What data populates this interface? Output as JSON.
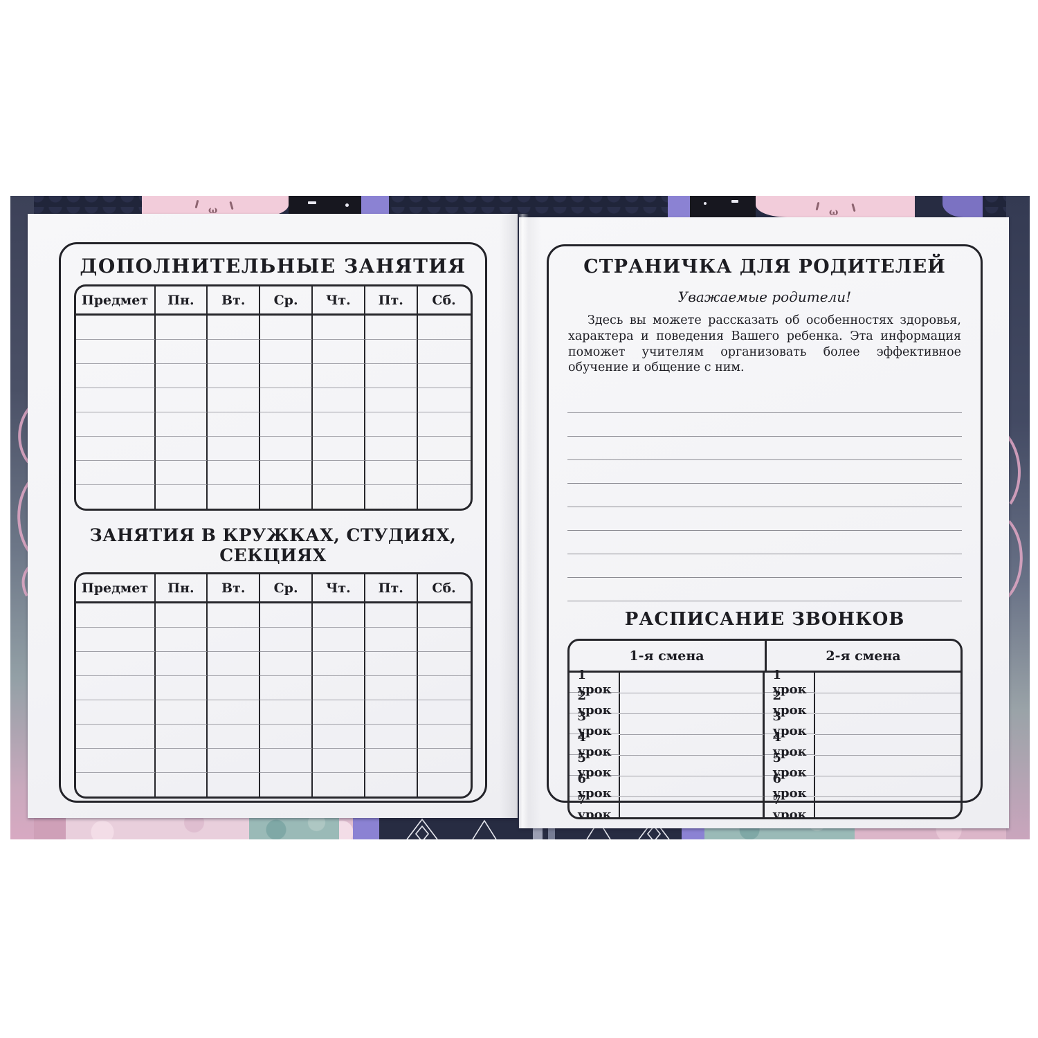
{
  "left_page": {
    "section1_title": "ДОПОЛНИТЕЛЬНЫЕ ЗАНЯТИЯ",
    "section2_title": "ЗАНЯТИЯ В КРУЖКАХ, СТУДИЯХ, СЕКЦИЯХ",
    "day_headers": [
      "Предмет",
      "Пн.",
      "Вт.",
      "Ср.",
      "Чт.",
      "Пт.",
      "Сб."
    ],
    "body_rows": 8
  },
  "right_page": {
    "title": "СТРАНИЧКА ДЛЯ РОДИТЕЛЕЙ",
    "salutation": "Уважаемые родители!",
    "paragraph": "Здесь вы можете рассказать об особенностях здоровья, характера и поведения Вашего ребенка. Эта информация поможет учителям организовать более эффективное обучение и общение с ним.",
    "ruled_lines": 9,
    "bells": {
      "title": "РАСПИСАНИЕ ЗВОНКОВ",
      "shift1_label": "1-я смена",
      "shift2_label": "2-я смена",
      "lessons": [
        "1 урок",
        "2 урок",
        "3 урок",
        "4 урок",
        "5 урок",
        "6 урок",
        "7 урок"
      ]
    }
  },
  "cover": {
    "cat_mouth_glyph": "ω",
    "colors": {
      "paper": "#f5f5f7",
      "ink": "#1e1e24",
      "rule_line": "#8b8b92",
      "table_dark_line": "#26262b",
      "table_thin_line": "#a0a0a7",
      "navy": "#272c42",
      "dark_panel": "#17171f",
      "purple_band": "#8b82d3",
      "pink_cat": "#f2ccda",
      "teal": "#9abab7",
      "rose_edge": "#cfa0b8"
    }
  }
}
